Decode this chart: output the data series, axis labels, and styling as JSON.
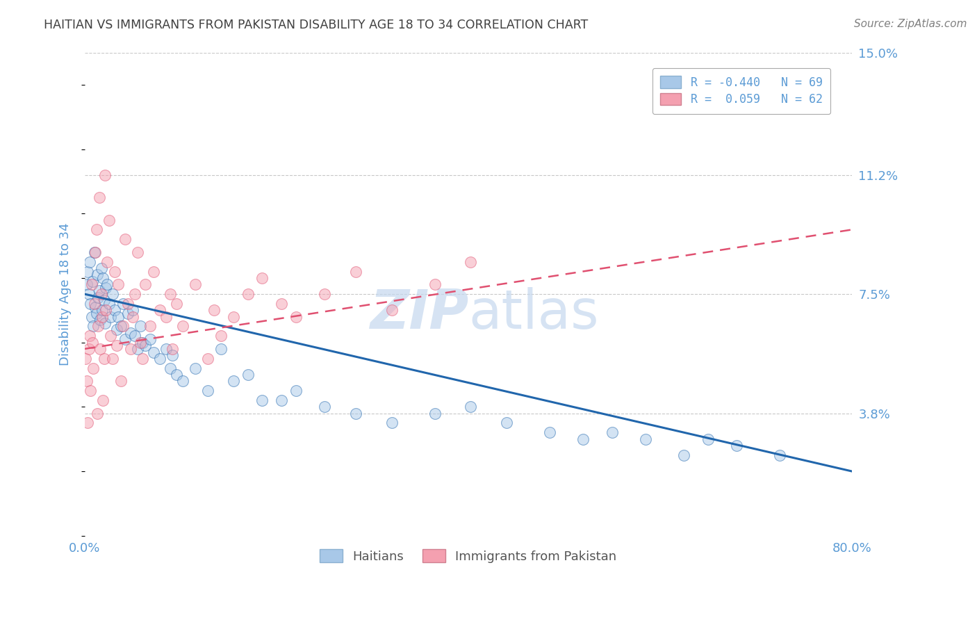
{
  "title": "HAITIAN VS IMMIGRANTS FROM PAKISTAN DISABILITY AGE 18 TO 34 CORRELATION CHART",
  "source": "Source: ZipAtlas.com",
  "ylabel": "Disability Age 18 to 34",
  "xlim": [
    0.0,
    80.0
  ],
  "ylim": [
    0.0,
    15.0
  ],
  "yticks": [
    3.8,
    7.5,
    11.2,
    15.0
  ],
  "xticks": [
    0.0,
    80.0
  ],
  "xtick_labels": [
    "0.0%",
    "80.0%"
  ],
  "ytick_labels": [
    "3.8%",
    "7.5%",
    "11.2%",
    "15.0%"
  ],
  "blue_color": "#a8c8e8",
  "pink_color": "#f4a0b0",
  "blue_line_color": "#2166ac",
  "pink_line_color": "#e05070",
  "title_color": "#404040",
  "axis_label_color": "#5b9bd5",
  "grid_color": "#c8c8c8",
  "background_color": "#ffffff",
  "watermark_color": "#c5d8ee",
  "R_blue": -0.44,
  "N_blue": 69,
  "R_pink": 0.059,
  "N_pink": 62,
  "haitians_x": [
    0.2,
    0.3,
    0.4,
    0.5,
    0.6,
    0.7,
    0.8,
    0.9,
    1.0,
    1.1,
    1.2,
    1.3,
    1.4,
    1.5,
    1.6,
    1.7,
    1.8,
    1.9,
    2.0,
    2.1,
    2.2,
    2.3,
    2.5,
    2.7,
    2.9,
    3.1,
    3.3,
    3.5,
    3.8,
    4.0,
    4.2,
    4.5,
    4.8,
    5.0,
    5.2,
    5.5,
    5.8,
    6.0,
    6.3,
    6.8,
    7.2,
    7.8,
    8.5,
    8.9,
    9.1,
    9.6,
    10.2,
    11.5,
    12.8,
    14.2,
    15.5,
    17.0,
    18.5,
    20.5,
    22.0,
    25.0,
    28.3,
    32.0,
    36.5,
    40.2,
    44.0,
    48.5,
    52.0,
    55.0,
    58.5,
    62.5,
    65.0,
    68.0,
    72.5
  ],
  "haitians_y": [
    7.8,
    8.2,
    7.5,
    8.5,
    7.2,
    6.8,
    7.9,
    6.5,
    8.8,
    7.1,
    6.9,
    8.1,
    7.4,
    7.6,
    6.7,
    8.3,
    7.0,
    8.0,
    7.3,
    6.6,
    7.7,
    7.8,
    7.2,
    6.8,
    7.5,
    7.0,
    6.4,
    6.8,
    6.5,
    7.2,
    6.1,
    6.9,
    6.3,
    7.0,
    6.2,
    5.8,
    6.5,
    6.0,
    5.9,
    6.1,
    5.7,
    5.5,
    5.8,
    5.2,
    5.6,
    5.0,
    4.8,
    5.2,
    4.5,
    5.8,
    4.8,
    5.0,
    4.2,
    4.2,
    4.5,
    4.0,
    3.8,
    3.5,
    3.8,
    4.0,
    3.5,
    3.2,
    3.0,
    3.2,
    3.0,
    2.5,
    3.0,
    2.8,
    2.5
  ],
  "pakistan_x": [
    0.1,
    0.2,
    0.3,
    0.4,
    0.5,
    0.6,
    0.7,
    0.8,
    0.9,
    1.0,
    1.1,
    1.2,
    1.3,
    1.4,
    1.5,
    1.6,
    1.7,
    1.8,
    1.9,
    2.0,
    2.1,
    2.2,
    2.3,
    2.5,
    2.7,
    2.9,
    3.1,
    3.3,
    3.5,
    3.8,
    4.0,
    4.2,
    4.5,
    4.8,
    5.0,
    5.2,
    5.5,
    5.8,
    6.0,
    6.3,
    6.8,
    7.2,
    7.8,
    8.5,
    8.9,
    9.1,
    9.6,
    10.2,
    11.5,
    12.8,
    13.5,
    14.2,
    15.5,
    17.0,
    18.5,
    20.5,
    22.0,
    25.0,
    28.3,
    32.0,
    36.5,
    40.2
  ],
  "pakistan_y": [
    5.5,
    4.8,
    3.5,
    5.8,
    6.2,
    4.5,
    7.8,
    6.0,
    5.2,
    7.2,
    8.8,
    9.5,
    3.8,
    6.5,
    10.5,
    5.8,
    7.5,
    6.8,
    4.2,
    5.5,
    11.2,
    7.0,
    8.5,
    9.8,
    6.2,
    5.5,
    8.2,
    5.9,
    7.8,
    4.8,
    6.5,
    9.2,
    7.2,
    5.8,
    6.8,
    7.5,
    8.8,
    6.0,
    5.5,
    7.8,
    6.5,
    8.2,
    7.0,
    6.8,
    7.5,
    5.8,
    7.2,
    6.5,
    7.8,
    5.5,
    7.0,
    6.2,
    6.8,
    7.5,
    8.0,
    7.2,
    6.8,
    7.5,
    8.2,
    7.0,
    7.8,
    8.5
  ]
}
